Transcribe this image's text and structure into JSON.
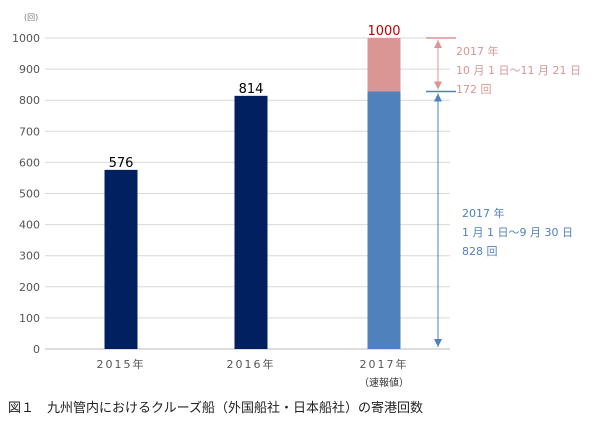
{
  "chart_data": {
    "type": "bar",
    "title": "",
    "unit_label": "(回)",
    "categories": [
      "2015年",
      "2016年",
      "2017年"
    ],
    "category_sublabels": [
      "",
      "",
      "（速報値）"
    ],
    "series": [
      {
        "name": "1月1日〜9月30日",
        "values": [
          576,
          814,
          828
        ],
        "color": "#4f81bd"
      },
      {
        "name": "10月1日〜11月21日",
        "values": [
          0,
          0,
          172
        ],
        "color": "#d99694"
      }
    ],
    "bar_color_past": "#002060",
    "data_labels": [
      "576",
      "814",
      "1000"
    ],
    "data_label_colors": [
      "#000000",
      "#000000",
      "#c00000"
    ],
    "ylim": [
      0,
      1000
    ],
    "yticks": [
      0,
      100,
      200,
      300,
      400,
      500,
      600,
      700,
      800,
      900,
      1000
    ],
    "grid": true,
    "annotations": [
      {
        "lines": [
          "2017 年",
          "10 月 1 日〜11 月 21 日",
          "172 回"
        ],
        "color": "#d99694",
        "from": 828,
        "to": 1000
      },
      {
        "lines": [
          "2017 年",
          "1 月 1 日〜9 月 30 日",
          "828 回"
        ],
        "color": "#4f81bd",
        "from": 0,
        "to": 828
      }
    ]
  },
  "caption": "図１　九州管内におけるクルーズ船（外国船社・日本船社）の寄港回数"
}
